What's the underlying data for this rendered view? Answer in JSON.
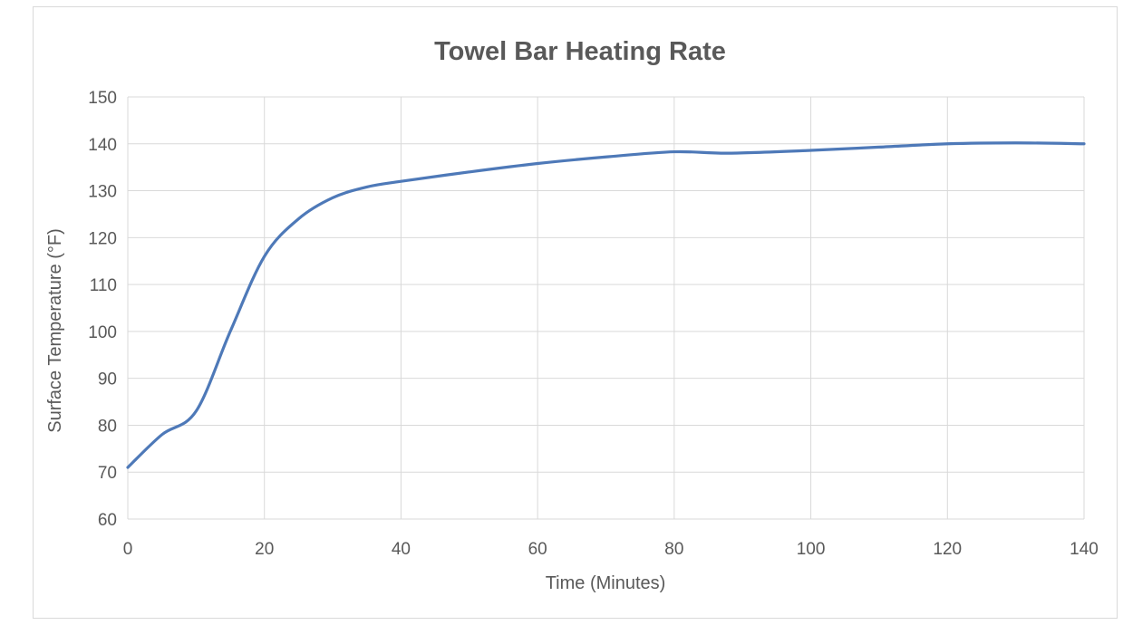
{
  "chart_data": {
    "type": "line",
    "title": "Towel Bar Heating Rate",
    "xlabel": "Time (Minutes)",
    "ylabel": "Surface Temperature (°F)",
    "xlim": [
      0,
      140
    ],
    "ylim": [
      60,
      150
    ],
    "x_ticks": [
      0,
      20,
      40,
      60,
      80,
      100,
      120,
      140
    ],
    "y_ticks": [
      60,
      70,
      80,
      90,
      100,
      110,
      120,
      130,
      140,
      150
    ],
    "grid": true,
    "legend": "none",
    "smooth": true,
    "colors": {
      "line": "#4E79B8",
      "grid": "#D9D9D9",
      "text": "#595959",
      "title": "#595959",
      "border": "#D9D9D9"
    },
    "series": [
      {
        "x": [
          0,
          5,
          10,
          15,
          20,
          25,
          30,
          35,
          40,
          50,
          60,
          70,
          80,
          88,
          100,
          110,
          120,
          130,
          140
        ],
        "y": [
          71,
          78,
          83,
          100,
          116,
          124,
          128.5,
          130.8,
          132,
          134,
          135.8,
          137.2,
          138.3,
          138,
          138.6,
          139.3,
          140,
          140.2,
          140
        ]
      }
    ]
  }
}
